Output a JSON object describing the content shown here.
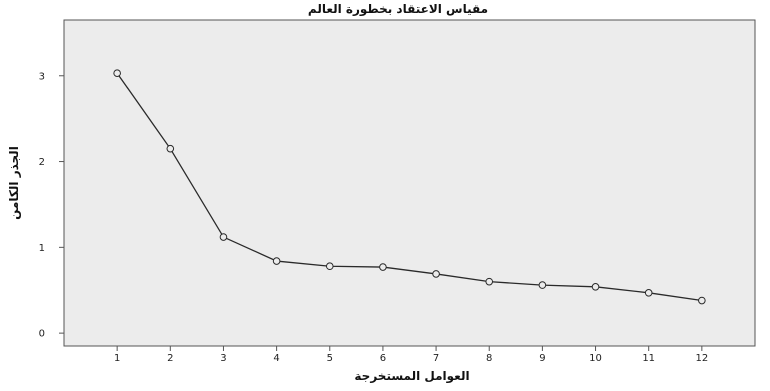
{
  "chart_data": {
    "type": "line",
    "title": "مقياس الاعتقاد بخطورة العالم",
    "xlabel": "العوامل المستخرجة",
    "ylabel": "الجذر الكامن",
    "x": [
      1,
      2,
      3,
      4,
      5,
      6,
      7,
      8,
      9,
      10,
      11,
      12
    ],
    "xlim": [
      0,
      13
    ],
    "ylim": [
      -0.15,
      3.65
    ],
    "yticks": [
      0,
      1,
      2,
      3
    ],
    "grid": false,
    "background": "#ececec",
    "line_color": "#2a2a2a",
    "series": [
      {
        "values": [
          3.03,
          2.15,
          1.12,
          0.84,
          0.78,
          0.77,
          0.69,
          0.6,
          0.56,
          0.54,
          0.47,
          0.38
        ]
      }
    ]
  }
}
